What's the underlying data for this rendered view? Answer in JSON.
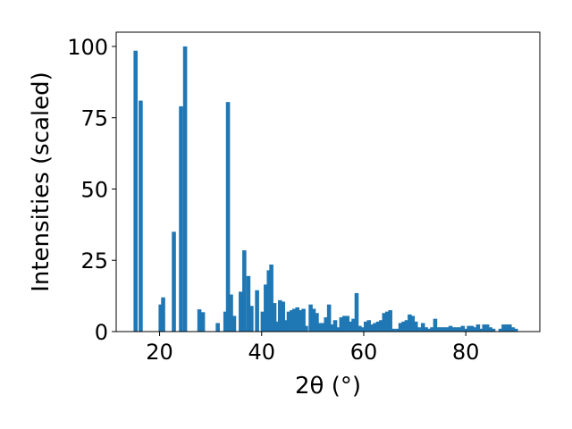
{
  "chart_data": {
    "type": "bar",
    "xlabel": "2θ (°)",
    "ylabel": "Intensities (scaled)",
    "xlim": [
      11.5,
      94.5
    ],
    "ylim": [
      0,
      105
    ],
    "x_ticks": [
      20,
      40,
      60,
      80
    ],
    "y_ticks": [
      0,
      25,
      50,
      75,
      100
    ],
    "bar_width": 0.8,
    "bar_color": "#1f77b4",
    "grid": false,
    "bars": [
      {
        "x": 15.3,
        "y": 98.5
      },
      {
        "x": 16.3,
        "y": 81
      },
      {
        "x": 20.2,
        "y": 9.5
      },
      {
        "x": 20.7,
        "y": 12
      },
      {
        "x": 22.8,
        "y": 35
      },
      {
        "x": 24.2,
        "y": 79
      },
      {
        "x": 25.0,
        "y": 100
      },
      {
        "x": 27.8,
        "y": 7.8
      },
      {
        "x": 28.5,
        "y": 6.8
      },
      {
        "x": 31.4,
        "y": 3
      },
      {
        "x": 32.9,
        "y": 7
      },
      {
        "x": 33.4,
        "y": 80.5
      },
      {
        "x": 34.0,
        "y": 13
      },
      {
        "x": 34.6,
        "y": 5.5
      },
      {
        "x": 35.9,
        "y": 14
      },
      {
        "x": 36.6,
        "y": 28.5
      },
      {
        "x": 37.4,
        "y": 19.5
      },
      {
        "x": 38.0,
        "y": 9
      },
      {
        "x": 39.1,
        "y": 14.5
      },
      {
        "x": 40.2,
        "y": 7
      },
      {
        "x": 40.8,
        "y": 16.5
      },
      {
        "x": 41.4,
        "y": 21.5
      },
      {
        "x": 41.9,
        "y": 23.5
      },
      {
        "x": 42.5,
        "y": 10
      },
      {
        "x": 43.0,
        "y": 3.5
      },
      {
        "x": 43.6,
        "y": 11
      },
      {
        "x": 44.2,
        "y": 10.5
      },
      {
        "x": 44.7,
        "y": 4
      },
      {
        "x": 45.3,
        "y": 7
      },
      {
        "x": 45.9,
        "y": 7.5
      },
      {
        "x": 46.4,
        "y": 8
      },
      {
        "x": 47.0,
        "y": 8.5
      },
      {
        "x": 47.6,
        "y": 7.5
      },
      {
        "x": 48.2,
        "y": 8
      },
      {
        "x": 48.7,
        "y": 2
      },
      {
        "x": 49.6,
        "y": 9.5
      },
      {
        "x": 50.2,
        "y": 8
      },
      {
        "x": 50.8,
        "y": 6.5
      },
      {
        "x": 51.4,
        "y": 3
      },
      {
        "x": 52.0,
        "y": 3
      },
      {
        "x": 52.6,
        "y": 5
      },
      {
        "x": 53.2,
        "y": 9.5
      },
      {
        "x": 53.8,
        "y": 2.5
      },
      {
        "x": 54.4,
        "y": 4
      },
      {
        "x": 55.0,
        "y": 1.5
      },
      {
        "x": 55.6,
        "y": 5
      },
      {
        "x": 56.2,
        "y": 5.5
      },
      {
        "x": 56.8,
        "y": 5.5
      },
      {
        "x": 57.4,
        "y": 3.5
      },
      {
        "x": 58.0,
        "y": 4.5
      },
      {
        "x": 58.6,
        "y": 13.5
      },
      {
        "x": 59.2,
        "y": 2
      },
      {
        "x": 59.8,
        "y": 1.5
      },
      {
        "x": 60.4,
        "y": 3.5
      },
      {
        "x": 61.0,
        "y": 4
      },
      {
        "x": 61.6,
        "y": 2.5
      },
      {
        "x": 62.2,
        "y": 3
      },
      {
        "x": 62.8,
        "y": 3.5
      },
      {
        "x": 63.4,
        "y": 4
      },
      {
        "x": 64.0,
        "y": 6.5
      },
      {
        "x": 64.6,
        "y": 7
      },
      {
        "x": 65.2,
        "y": 7.5
      },
      {
        "x": 65.8,
        "y": 1
      },
      {
        "x": 66.6,
        "y": 1
      },
      {
        "x": 67.2,
        "y": 3
      },
      {
        "x": 67.8,
        "y": 3.5
      },
      {
        "x": 68.4,
        "y": 4
      },
      {
        "x": 69.0,
        "y": 6
      },
      {
        "x": 69.6,
        "y": 5.5
      },
      {
        "x": 70.2,
        "y": 3.5
      },
      {
        "x": 70.8,
        "y": 1.5
      },
      {
        "x": 71.6,
        "y": 3
      },
      {
        "x": 72.2,
        "y": 1.5
      },
      {
        "x": 72.8,
        "y": 1
      },
      {
        "x": 73.4,
        "y": 1.5
      },
      {
        "x": 74.0,
        "y": 4.5
      },
      {
        "x": 74.6,
        "y": 1.5
      },
      {
        "x": 75.2,
        "y": 1.5
      },
      {
        "x": 75.8,
        "y": 1.5
      },
      {
        "x": 76.4,
        "y": 1.5
      },
      {
        "x": 77.0,
        "y": 2
      },
      {
        "x": 77.6,
        "y": 1.5
      },
      {
        "x": 78.2,
        "y": 1.5
      },
      {
        "x": 78.8,
        "y": 1.5
      },
      {
        "x": 79.4,
        "y": 2
      },
      {
        "x": 80.0,
        "y": 1
      },
      {
        "x": 80.6,
        "y": 2
      },
      {
        "x": 81.2,
        "y": 2
      },
      {
        "x": 81.8,
        "y": 1.5
      },
      {
        "x": 82.4,
        "y": 2.5
      },
      {
        "x": 83.0,
        "y": 1
      },
      {
        "x": 83.6,
        "y": 2.5
      },
      {
        "x": 84.2,
        "y": 2.5
      },
      {
        "x": 84.8,
        "y": 1.5
      },
      {
        "x": 85.4,
        "y": 1
      },
      {
        "x": 86.8,
        "y": 1
      },
      {
        "x": 87.4,
        "y": 2.5
      },
      {
        "x": 88.0,
        "y": 2.5
      },
      {
        "x": 88.6,
        "y": 2.5
      },
      {
        "x": 89.2,
        "y": 1.5
      },
      {
        "x": 89.8,
        "y": 1
      }
    ]
  }
}
